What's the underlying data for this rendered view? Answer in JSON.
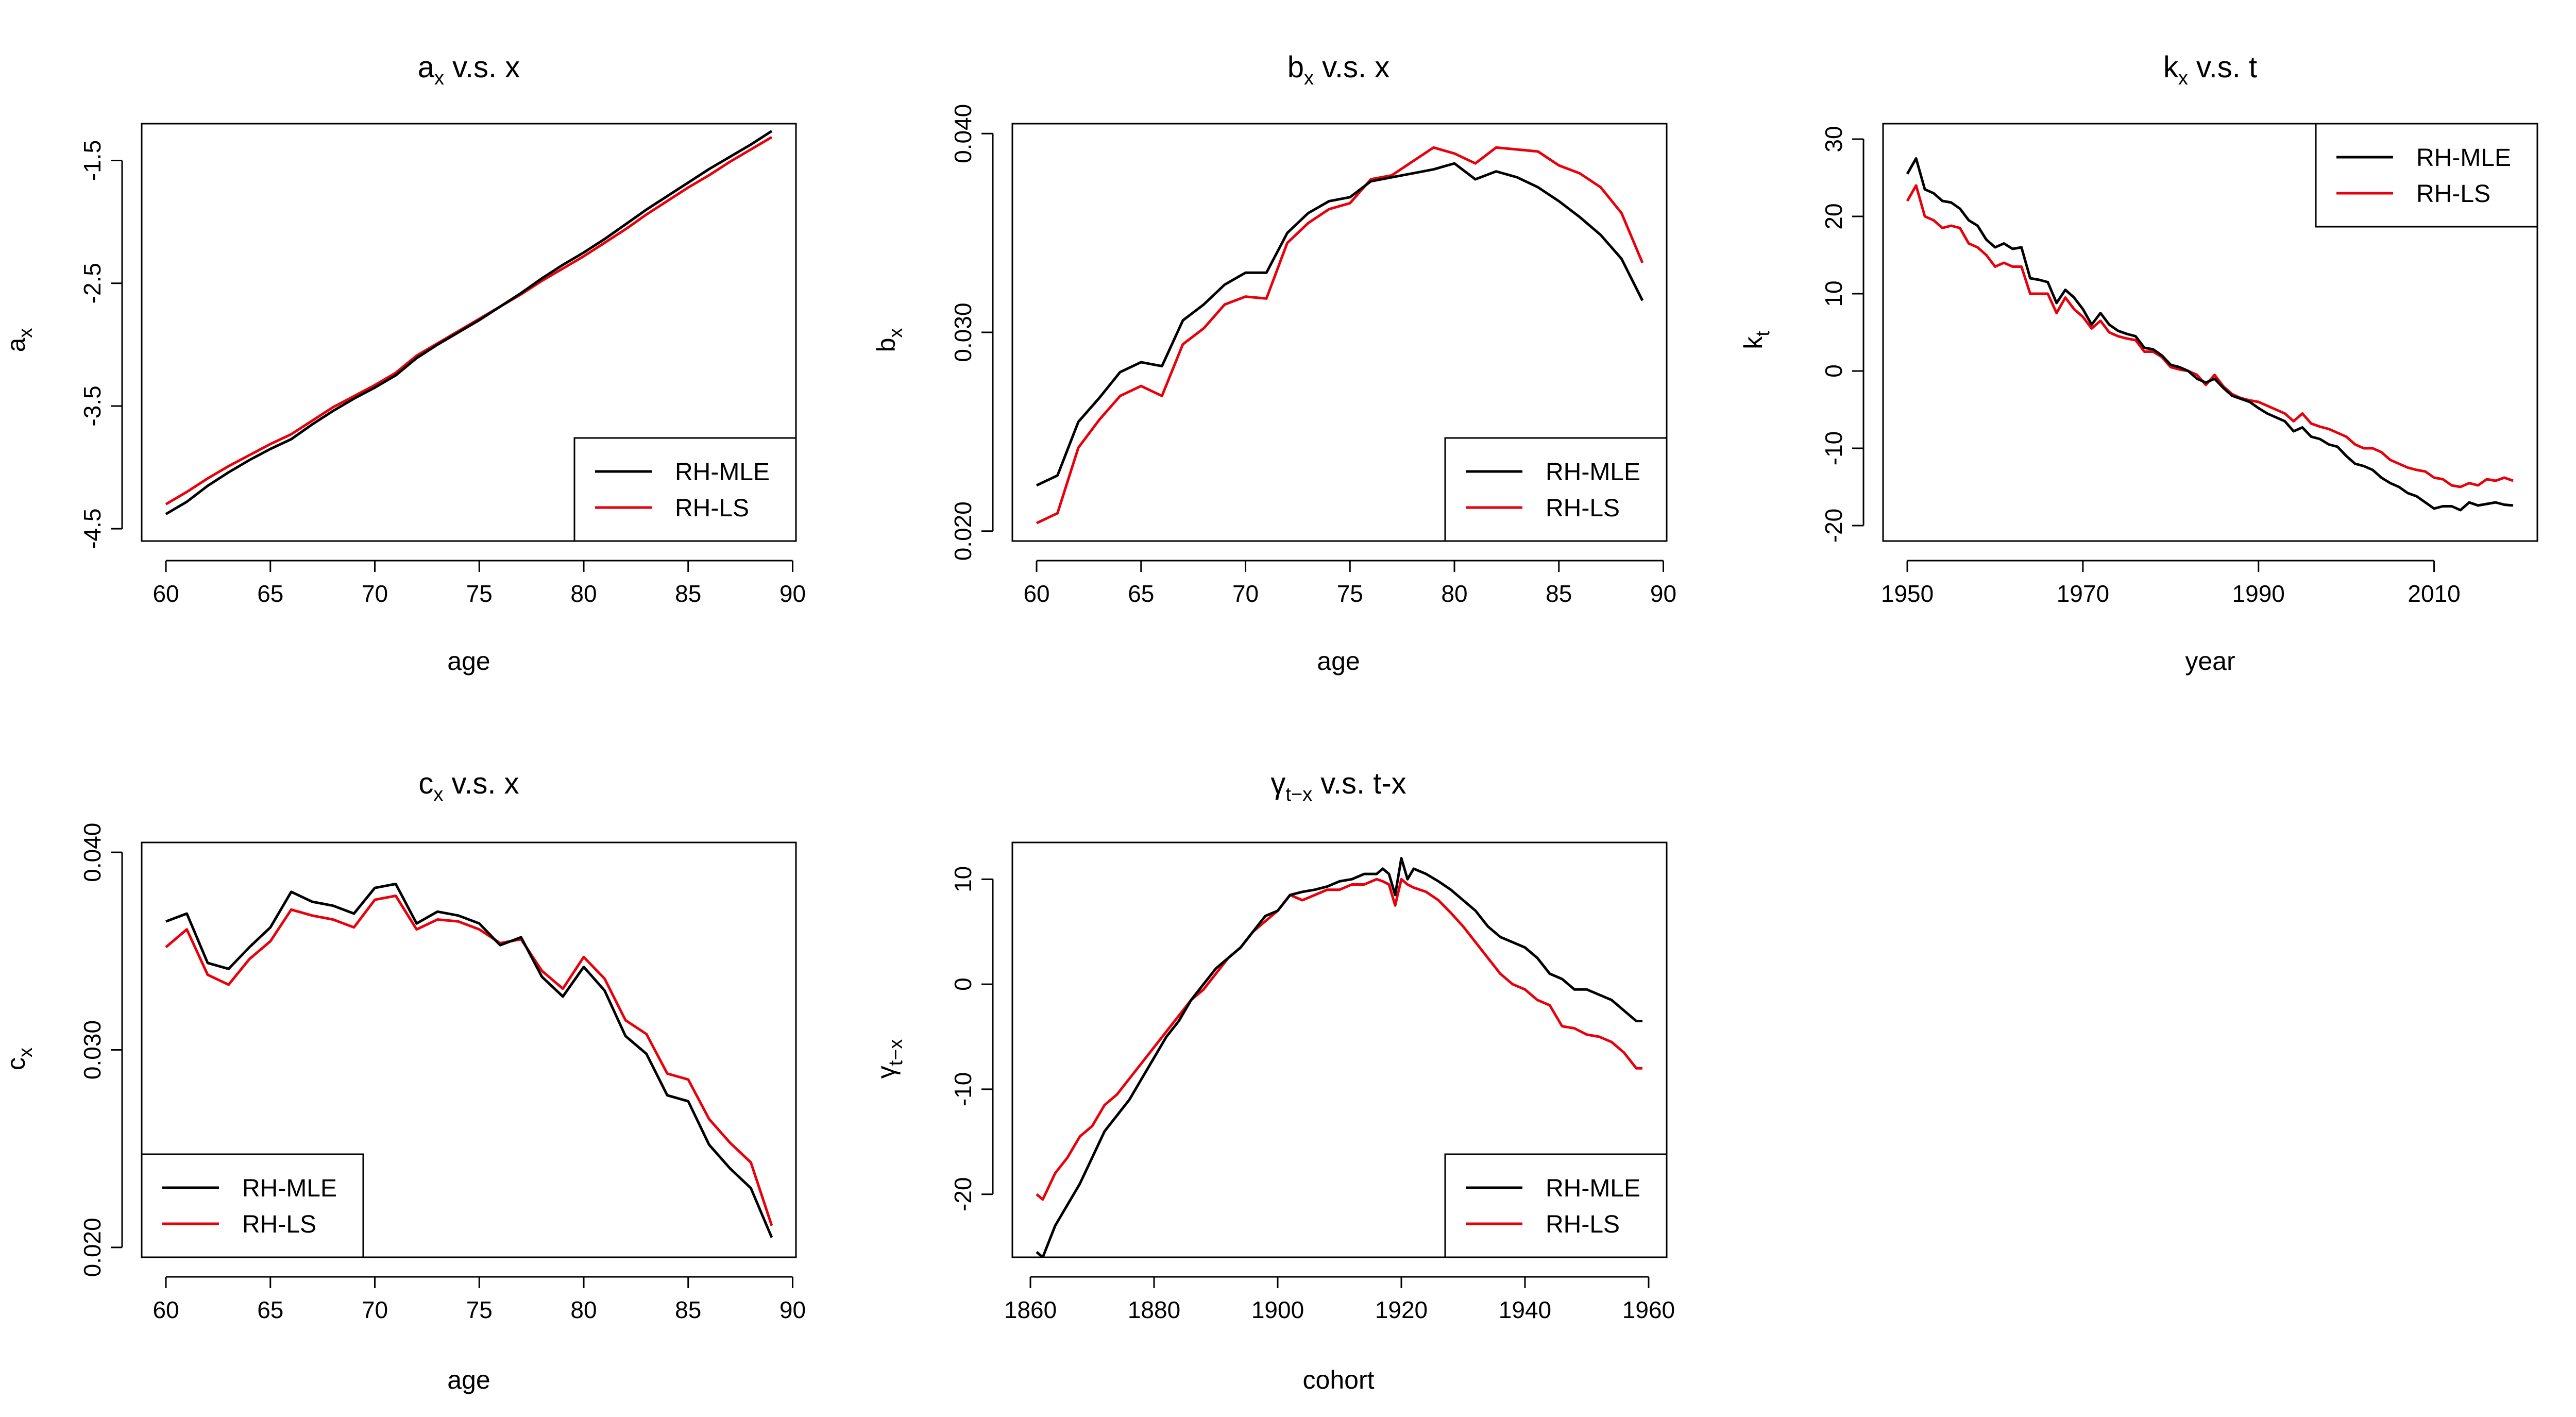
{
  "colors": {
    "mle": "#000000",
    "ls": "#e8000b"
  },
  "chart_data": [
    {
      "id": "ax",
      "type": "line",
      "title": "a",
      "title_sub": "x",
      "title_rest": " v.s. x",
      "xlabel": "age",
      "ylabel": "a",
      "ylabel_sub": "x",
      "xlim": [
        60,
        89
      ],
      "ylim": [
        -4.6,
        -1.2
      ],
      "xticks": [
        60,
        65,
        70,
        75,
        80,
        85,
        90
      ],
      "yticks": [
        -4.5,
        -3.5,
        -2.5,
        -1.5
      ],
      "ytick_labels": [
        "-4.5",
        "-3.5",
        "-2.5",
        "-1.5"
      ],
      "legend": {
        "position": "bottom-right",
        "entries": [
          "RH-MLE",
          "RH-LS"
        ]
      },
      "x": [
        60,
        61,
        62,
        63,
        64,
        65,
        66,
        67,
        68,
        69,
        70,
        71,
        72,
        73,
        74,
        75,
        76,
        77,
        78,
        79,
        80,
        81,
        82,
        83,
        84,
        85,
        86,
        87,
        88,
        89
      ],
      "series": [
        {
          "name": "RH-MLE",
          "values": [
            -4.38,
            -4.28,
            -4.15,
            -4.04,
            -3.94,
            -3.85,
            -3.77,
            -3.65,
            -3.54,
            -3.44,
            -3.35,
            -3.25,
            -3.11,
            -3.0,
            -2.9,
            -2.8,
            -2.69,
            -2.58,
            -2.46,
            -2.35,
            -2.25,
            -2.14,
            -2.02,
            -1.9,
            -1.79,
            -1.68,
            -1.57,
            -1.47,
            -1.37,
            -1.26
          ]
        },
        {
          "name": "RH-LS",
          "values": [
            -4.3,
            -4.2,
            -4.09,
            -3.99,
            -3.9,
            -3.81,
            -3.73,
            -3.62,
            -3.51,
            -3.42,
            -3.33,
            -3.23,
            -3.09,
            -2.99,
            -2.89,
            -2.79,
            -2.69,
            -2.59,
            -2.48,
            -2.38,
            -2.28,
            -2.17,
            -2.06,
            -1.94,
            -1.83,
            -1.72,
            -1.62,
            -1.51,
            -1.41,
            -1.31
          ]
        }
      ]
    },
    {
      "id": "bx",
      "type": "line",
      "title": "b",
      "title_sub": "x",
      "title_rest": " v.s. x",
      "xlabel": "age",
      "ylabel": "b",
      "ylabel_sub": "x",
      "xlim": [
        60,
        89
      ],
      "ylim": [
        0.0195,
        0.0405
      ],
      "xticks": [
        60,
        65,
        70,
        75,
        80,
        85,
        90
      ],
      "yticks": [
        0.02,
        0.03,
        0.04
      ],
      "ytick_labels": [
        "0.020",
        "0.030",
        "0.040"
      ],
      "legend": {
        "position": "bottom-right",
        "entries": [
          "RH-MLE",
          "RH-LS"
        ]
      },
      "x": [
        60,
        61,
        62,
        63,
        64,
        65,
        66,
        67,
        68,
        69,
        70,
        71,
        72,
        73,
        74,
        75,
        76,
        77,
        78,
        79,
        80,
        81,
        82,
        83,
        84,
        85,
        86,
        87,
        88,
        89
      ],
      "series": [
        {
          "name": "RH-MLE",
          "values": [
            0.0223,
            0.0228,
            0.0255,
            0.0267,
            0.028,
            0.0285,
            0.0283,
            0.0306,
            0.0314,
            0.0324,
            0.033,
            0.033,
            0.035,
            0.036,
            0.0366,
            0.0368,
            0.0376,
            0.0378,
            0.038,
            0.0382,
            0.0385,
            0.0377,
            0.0381,
            0.0378,
            0.0373,
            0.0366,
            0.0358,
            0.0349,
            0.0337,
            0.0316
          ]
        },
        {
          "name": "RH-LS",
          "values": [
            0.0204,
            0.0209,
            0.0242,
            0.0256,
            0.0268,
            0.0273,
            0.0268,
            0.0294,
            0.0302,
            0.0314,
            0.0318,
            0.0317,
            0.0345,
            0.0355,
            0.0362,
            0.0365,
            0.0377,
            0.0379,
            0.0386,
            0.0393,
            0.039,
            0.0385,
            0.0393,
            0.0392,
            0.0391,
            0.0384,
            0.038,
            0.0373,
            0.036,
            0.0335
          ]
        }
      ]
    },
    {
      "id": "kt",
      "type": "line",
      "title": "k",
      "title_sub": "x",
      "title_rest": " v.s. t",
      "xlabel": "year",
      "ylabel": "k",
      "ylabel_sub": "t",
      "xlim": [
        1950,
        2019
      ],
      "ylim": [
        -22,
        32
      ],
      "xticks": [
        1950,
        1970,
        1990,
        2010
      ],
      "yticks": [
        -20,
        -10,
        0,
        10,
        20,
        30
      ],
      "ytick_labels": [
        "-20",
        "-10",
        "0",
        "10",
        "20",
        "30"
      ],
      "legend": {
        "position": "top-right",
        "entries": [
          "RH-MLE",
          "RH-LS"
        ]
      },
      "x": [
        1950,
        1951,
        1952,
        1953,
        1954,
        1955,
        1956,
        1957,
        1958,
        1959,
        1960,
        1961,
        1962,
        1963,
        1964,
        1965,
        1966,
        1967,
        1968,
        1969,
        1970,
        1971,
        1972,
        1973,
        1974,
        1975,
        1976,
        1977,
        1978,
        1979,
        1980,
        1981,
        1982,
        1983,
        1984,
        1985,
        1986,
        1987,
        1988,
        1989,
        1990,
        1991,
        1992,
        1993,
        1994,
        1995,
        1996,
        1997,
        1998,
        1999,
        2000,
        2001,
        2002,
        2003,
        2004,
        2005,
        2006,
        2007,
        2008,
        2009,
        2010,
        2011,
        2012,
        2013,
        2014,
        2015,
        2016,
        2017,
        2018,
        2019
      ],
      "series": [
        {
          "name": "RH-MLE",
          "values": [
            25.5,
            27.5,
            23.5,
            23.0,
            22.0,
            21.8,
            21.0,
            19.5,
            18.8,
            17.0,
            16.0,
            16.5,
            15.8,
            16.0,
            12.0,
            11.8,
            11.5,
            8.8,
            10.5,
            9.5,
            8.0,
            6.0,
            7.5,
            6.0,
            5.2,
            4.8,
            4.5,
            3.0,
            2.8,
            2.0,
            0.8,
            0.5,
            0.0,
            -1.0,
            -1.5,
            -1.0,
            -2.2,
            -3.2,
            -3.6,
            -4.0,
            -4.8,
            -5.5,
            -6.0,
            -6.5,
            -7.8,
            -7.3,
            -8.5,
            -8.8,
            -9.5,
            -9.8,
            -11.0,
            -12.0,
            -12.3,
            -12.8,
            -13.8,
            -14.5,
            -15.0,
            -15.8,
            -16.2,
            -17.0,
            -17.8,
            -17.5,
            -17.5,
            -18.0,
            -17.0,
            -17.4,
            -17.2,
            -17.0,
            -17.3,
            -17.4
          ]
        },
        {
          "name": "RH-LS",
          "values": [
            22.0,
            24.0,
            20.0,
            19.5,
            18.5,
            18.8,
            18.5,
            16.5,
            16.0,
            15.0,
            13.5,
            14.0,
            13.5,
            13.5,
            10.0,
            10.0,
            10.0,
            7.5,
            9.5,
            8.0,
            7.0,
            5.5,
            6.5,
            5.0,
            4.5,
            4.2,
            4.0,
            2.5,
            2.5,
            1.8,
            0.5,
            0.2,
            0.0,
            -0.5,
            -1.8,
            -0.5,
            -2.0,
            -3.0,
            -3.5,
            -3.8,
            -4.0,
            -4.5,
            -5.0,
            -5.5,
            -6.5,
            -5.5,
            -6.8,
            -7.2,
            -7.5,
            -8.0,
            -8.5,
            -9.5,
            -10.0,
            -10.0,
            -10.5,
            -11.5,
            -12.0,
            -12.5,
            -12.8,
            -13.0,
            -13.8,
            -14.0,
            -14.8,
            -15.0,
            -14.5,
            -14.8,
            -14.0,
            -14.2,
            -13.8,
            -14.2
          ]
        }
      ]
    },
    {
      "id": "cx",
      "type": "line",
      "title": "c",
      "title_sub": "x",
      "title_rest": " v.s. x",
      "xlabel": "age",
      "ylabel": "c",
      "ylabel_sub": "x",
      "xlim": [
        60,
        89
      ],
      "ylim": [
        0.0195,
        0.0405
      ],
      "xticks": [
        60,
        65,
        70,
        75,
        80,
        85,
        90
      ],
      "yticks": [
        0.02,
        0.03,
        0.04
      ],
      "ytick_labels": [
        "0.020",
        "0.030",
        "0.040"
      ],
      "legend": {
        "position": "bottom-left",
        "entries": [
          "RH-MLE",
          "RH-LS"
        ]
      },
      "x": [
        60,
        61,
        62,
        63,
        64,
        65,
        66,
        67,
        68,
        69,
        70,
        71,
        72,
        73,
        74,
        75,
        76,
        77,
        78,
        79,
        80,
        81,
        82,
        83,
        84,
        85,
        86,
        87,
        88,
        89
      ],
      "series": [
        {
          "name": "RH-MLE",
          "values": [
            0.0365,
            0.0369,
            0.0344,
            0.0341,
            0.0352,
            0.0362,
            0.038,
            0.0375,
            0.0373,
            0.0369,
            0.0382,
            0.0384,
            0.0364,
            0.037,
            0.0368,
            0.0364,
            0.0353,
            0.0357,
            0.0337,
            0.0327,
            0.0342,
            0.033,
            0.0307,
            0.0298,
            0.0277,
            0.0274,
            0.0252,
            0.024,
            0.023,
            0.0205
          ]
        },
        {
          "name": "RH-LS",
          "values": [
            0.0352,
            0.0361,
            0.0338,
            0.0333,
            0.0346,
            0.0355,
            0.0371,
            0.0368,
            0.0366,
            0.0362,
            0.0376,
            0.0378,
            0.0361,
            0.0366,
            0.0365,
            0.0361,
            0.0354,
            0.0356,
            0.034,
            0.0331,
            0.0347,
            0.0336,
            0.0315,
            0.0308,
            0.0288,
            0.0285,
            0.0265,
            0.0253,
            0.0243,
            0.0211
          ]
        }
      ]
    },
    {
      "id": "gamma",
      "type": "line",
      "title": "γ",
      "title_sub": "t−x",
      "title_rest": " v.s. t-x",
      "xlabel": "cohort",
      "ylabel": "γ",
      "ylabel_sub": "t−x",
      "xlim": [
        1861,
        1959
      ],
      "ylim": [
        -26,
        13.5
      ],
      "xticks": [
        1860,
        1880,
        1900,
        1920,
        1940,
        1960
      ],
      "yticks": [
        -20,
        -10,
        0,
        10
      ],
      "ytick_labels": [
        "-20",
        "-10",
        "0",
        "10"
      ],
      "legend": {
        "position": "bottom-right",
        "entries": [
          "RH-MLE",
          "RH-LS"
        ]
      },
      "x": [
        1861,
        1862,
        1864,
        1866,
        1868,
        1870,
        1872,
        1874,
        1876,
        1878,
        1880,
        1882,
        1884,
        1886,
        1888,
        1890,
        1892,
        1894,
        1896,
        1898,
        1900,
        1902,
        1904,
        1906,
        1908,
        1910,
        1912,
        1914,
        1916,
        1917,
        1918,
        1919,
        1920,
        1921,
        1922,
        1924,
        1926,
        1928,
        1930,
        1932,
        1934,
        1936,
        1938,
        1940,
        1942,
        1944,
        1946,
        1948,
        1950,
        1952,
        1954,
        1956,
        1958,
        1959
      ],
      "series": [
        {
          "name": "RH-MLE",
          "values": [
            -25.5,
            -26.0,
            -23.0,
            -21.0,
            -19.0,
            -16.5,
            -14.0,
            -12.5,
            -11.0,
            -9.0,
            -7.0,
            -5.0,
            -3.5,
            -1.5,
            0.0,
            1.5,
            2.5,
            3.5,
            5.0,
            6.5,
            7.0,
            8.5,
            8.8,
            9.0,
            9.3,
            9.8,
            10.0,
            10.5,
            10.5,
            11.0,
            10.5,
            8.5,
            12.0,
            10.0,
            11.0,
            10.5,
            9.8,
            9.0,
            8.0,
            7.0,
            5.5,
            4.5,
            4.0,
            3.5,
            2.5,
            1.0,
            0.5,
            -0.5,
            -0.5,
            -1.0,
            -1.5,
            -2.5,
            -3.5,
            -3.5
          ]
        },
        {
          "name": "RH-LS",
          "values": [
            -20.0,
            -20.5,
            -18.0,
            -16.5,
            -14.5,
            -13.5,
            -11.5,
            -10.5,
            -9.0,
            -7.5,
            -6.0,
            -4.5,
            -3.0,
            -1.5,
            -0.5,
            1.0,
            2.5,
            3.5,
            5.0,
            6.0,
            7.0,
            8.5,
            8.0,
            8.5,
            9.0,
            9.0,
            9.5,
            9.5,
            10.0,
            9.8,
            9.5,
            7.5,
            10.0,
            9.5,
            9.2,
            8.8,
            8.0,
            6.8,
            5.5,
            4.0,
            2.5,
            1.0,
            0.0,
            -0.5,
            -1.5,
            -2.0,
            -4.0,
            -4.2,
            -4.8,
            -5.0,
            -5.5,
            -6.5,
            -8.0,
            -8.0
          ]
        }
      ]
    }
  ]
}
